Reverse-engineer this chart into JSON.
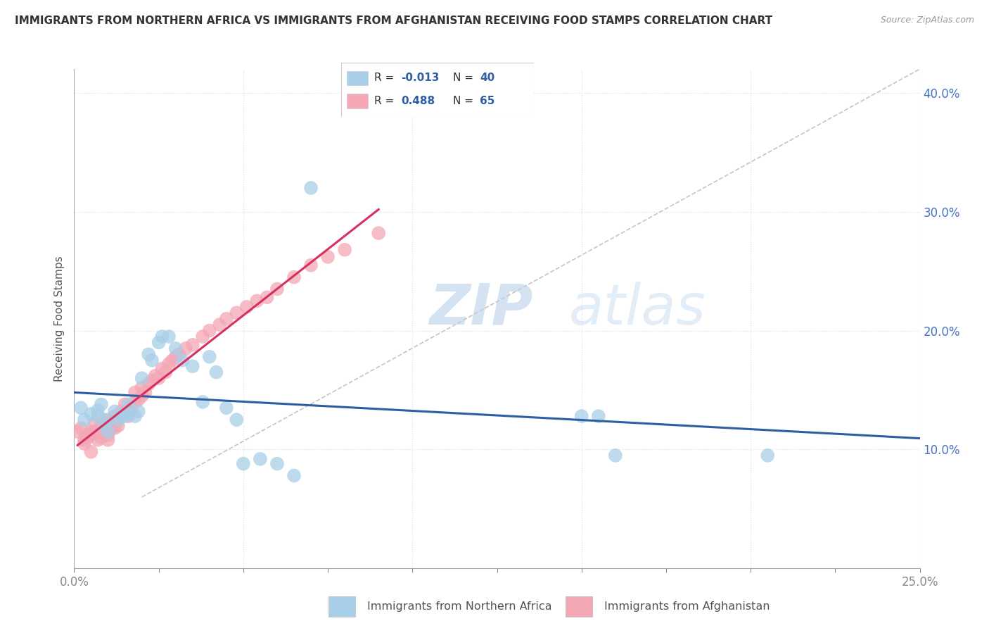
{
  "title": "IMMIGRANTS FROM NORTHERN AFRICA VS IMMIGRANTS FROM AFGHANISTAN RECEIVING FOOD STAMPS CORRELATION CHART",
  "source": "Source: ZipAtlas.com",
  "xlabel_blue": "Immigrants from Northern Africa",
  "xlabel_pink": "Immigrants from Afghanistan",
  "ylabel": "Receiving Food Stamps",
  "xlim": [
    0.0,
    0.25
  ],
  "ylim": [
    0.0,
    0.42
  ],
  "right_yticks": [
    0.1,
    0.2,
    0.3,
    0.4
  ],
  "right_yticklabels": [
    "10.0%",
    "20.0%",
    "30.0%",
    "40.0%"
  ],
  "legend_R_blue": "-0.013",
  "legend_N_blue": "40",
  "legend_R_pink": "0.488",
  "legend_N_pink": "65",
  "blue_color": "#A8CEE8",
  "pink_color": "#F4A7B5",
  "blue_line_color": "#2E5FA3",
  "pink_line_color": "#D63060",
  "diag_line_color": "#D0C0C0",
  "grid_color": "#DDDDDD",
  "watermark_zip_color": "#C8DCF0",
  "watermark_atlas_color": "#C8DCF0",
  "blue_x": [
    0.002,
    0.003,
    0.005,
    0.007,
    0.007,
    0.008,
    0.009,
    0.01,
    0.01,
    0.012,
    0.013,
    0.014,
    0.015,
    0.016,
    0.016,
    0.018,
    0.019,
    0.02,
    0.022,
    0.023,
    0.025,
    0.026,
    0.028,
    0.03,
    0.032,
    0.035,
    0.038,
    0.04,
    0.042,
    0.045,
    0.048,
    0.05,
    0.055,
    0.06,
    0.065,
    0.07,
    0.15,
    0.155,
    0.16,
    0.205
  ],
  "blue_y": [
    0.135,
    0.125,
    0.13,
    0.133,
    0.128,
    0.138,
    0.12,
    0.115,
    0.125,
    0.132,
    0.125,
    0.128,
    0.128,
    0.13,
    0.138,
    0.128,
    0.132,
    0.16,
    0.18,
    0.175,
    0.19,
    0.195,
    0.195,
    0.185,
    0.175,
    0.17,
    0.14,
    0.178,
    0.165,
    0.135,
    0.125,
    0.088,
    0.092,
    0.088,
    0.078,
    0.32,
    0.128,
    0.128,
    0.095,
    0.095
  ],
  "pink_x": [
    0.001,
    0.002,
    0.003,
    0.003,
    0.004,
    0.004,
    0.005,
    0.005,
    0.005,
    0.006,
    0.006,
    0.007,
    0.007,
    0.008,
    0.008,
    0.009,
    0.009,
    0.01,
    0.01,
    0.01,
    0.011,
    0.011,
    0.012,
    0.012,
    0.013,
    0.013,
    0.014,
    0.014,
    0.015,
    0.015,
    0.016,
    0.016,
    0.017,
    0.018,
    0.018,
    0.019,
    0.02,
    0.02,
    0.021,
    0.022,
    0.023,
    0.024,
    0.025,
    0.026,
    0.027,
    0.028,
    0.029,
    0.03,
    0.031,
    0.033,
    0.035,
    0.038,
    0.04,
    0.043,
    0.045,
    0.048,
    0.051,
    0.054,
    0.057,
    0.06,
    0.065,
    0.07,
    0.075,
    0.08,
    0.09
  ],
  "pink_y": [
    0.115,
    0.118,
    0.105,
    0.108,
    0.11,
    0.112,
    0.112,
    0.115,
    0.098,
    0.115,
    0.122,
    0.108,
    0.115,
    0.12,
    0.11,
    0.115,
    0.125,
    0.112,
    0.115,
    0.108,
    0.118,
    0.122,
    0.128,
    0.118,
    0.12,
    0.125,
    0.128,
    0.132,
    0.13,
    0.138,
    0.128,
    0.132,
    0.135,
    0.14,
    0.148,
    0.142,
    0.145,
    0.152,
    0.148,
    0.155,
    0.158,
    0.162,
    0.16,
    0.168,
    0.165,
    0.172,
    0.175,
    0.178,
    0.18,
    0.185,
    0.188,
    0.195,
    0.2,
    0.205,
    0.21,
    0.215,
    0.22,
    0.225,
    0.228,
    0.235,
    0.245,
    0.255,
    0.262,
    0.268,
    0.282
  ],
  "pink_line_x": [
    0.001,
    0.09
  ],
  "blue_line_x": [
    0.0,
    0.25
  ]
}
